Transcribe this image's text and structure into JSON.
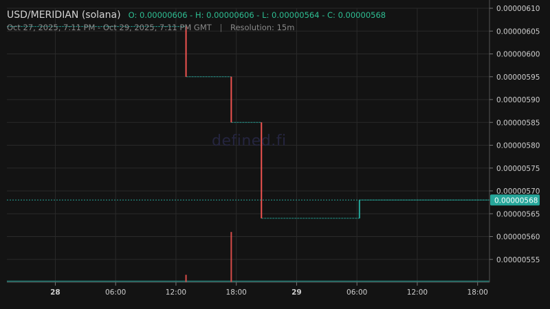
{
  "header": {
    "pair": "USD/MERIDIAN (solana)",
    "ohlc": "O: 0.00000606 - H: 0.00000606 - L: 0.00000564 - C: 0.00000568",
    "range": "Oct 27, 2025, 7:11 PM - Oct 29, 2025, 7:11 PM GMT",
    "separator": "|",
    "resolution": "Resolution: 15m"
  },
  "watermark": "defined.fi",
  "colors": {
    "up": "#26a69a",
    "down": "#ef5350",
    "bg": "#131313",
    "grid": "#2a2a2a",
    "price_tag": "#26a69a"
  },
  "chart_data": {
    "type": "candlestick",
    "x_range": [
      "2025-10-27T19:11",
      "2025-10-29T19:11"
    ],
    "y_range": [
      5.5e-06,
      6.1e-06
    ],
    "yticks": [
      "0.00000610",
      "0.00000605",
      "0.00000600",
      "0.00000595",
      "0.00000590",
      "0.00000585",
      "0.00000580",
      "0.00000575",
      "0.00000570",
      "0.00000565",
      "0.00000560",
      "0.00000555"
    ],
    "xticks": [
      {
        "t": "2025-10-28T00:00",
        "label": "28",
        "bold": true
      },
      {
        "t": "2025-10-28T06:00",
        "label": "06:00",
        "bold": false
      },
      {
        "t": "2025-10-28T12:00",
        "label": "12:00",
        "bold": false
      },
      {
        "t": "2025-10-28T18:00",
        "label": "18:00",
        "bold": false
      },
      {
        "t": "2025-10-29T00:00",
        "label": "29",
        "bold": true
      },
      {
        "t": "2025-10-29T06:00",
        "label": "06:00",
        "bold": false
      },
      {
        "t": "2025-10-29T12:00",
        "label": "12:00",
        "bold": false
      },
      {
        "t": "2025-10-29T18:00",
        "label": "18:00",
        "bold": false
      }
    ],
    "last_price": "0.00000568",
    "price_steps": [
      {
        "from": "2025-10-27T19:11",
        "to": "2025-10-28T13:00",
        "price": 6.06e-06
      },
      {
        "from": "2025-10-28T13:00",
        "to": "2025-10-28T17:30",
        "price": 5.95e-06
      },
      {
        "from": "2025-10-28T17:30",
        "to": "2025-10-28T20:30",
        "price": 5.85e-06
      },
      {
        "from": "2025-10-28T20:30",
        "to": "2025-10-29T06:15",
        "price": 5.64e-06
      },
      {
        "from": "2025-10-29T06:15",
        "to": "2025-10-29T19:11",
        "price": 5.68e-06
      }
    ],
    "candles": [
      {
        "t": "2025-10-28T13:00",
        "o": 6.06e-06,
        "h": 6.06e-06,
        "l": 5.95e-06,
        "c": 5.95e-06
      },
      {
        "t": "2025-10-28T17:30",
        "o": 5.95e-06,
        "h": 5.95e-06,
        "l": 5.85e-06,
        "c": 5.85e-06
      },
      {
        "t": "2025-10-28T20:30",
        "o": 5.85e-06,
        "h": 5.85e-06,
        "l": 5.64e-06,
        "c": 5.64e-06
      },
      {
        "t": "2025-10-29T06:15",
        "o": 5.64e-06,
        "h": 5.68e-06,
        "l": 5.64e-06,
        "c": 5.68e-06
      }
    ],
    "volume_bars": [
      {
        "t": "2025-10-28T13:00",
        "rel": 0.09
      },
      {
        "t": "2025-10-28T17:30",
        "rel": 0.61
      }
    ]
  }
}
